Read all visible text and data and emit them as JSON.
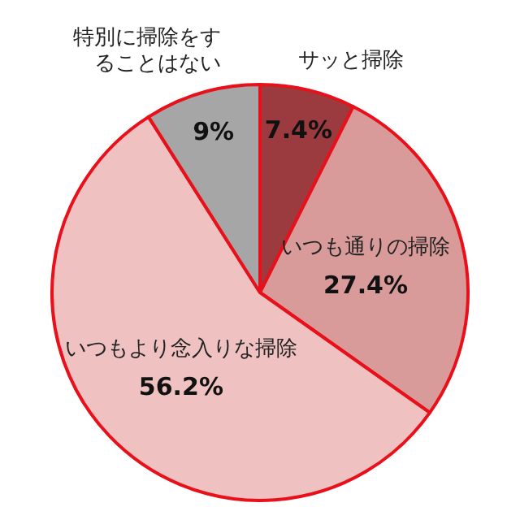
{
  "chart_data": {
    "type": "pie",
    "categories": [
      "サッと掃除",
      "いつも通りの掃除",
      "いつもより念入りな掃除",
      "特別に掃除をすることはない"
    ],
    "values": [
      7.4,
      27.4,
      56.2,
      9
    ],
    "colors": [
      "#9b3a3f",
      "#d99a9a",
      "#efc1c1",
      "#a6a6a6"
    ],
    "value_labels": [
      "7.4%",
      "27.4%",
      "56.2%",
      "9%"
    ],
    "legend": false
  }
}
